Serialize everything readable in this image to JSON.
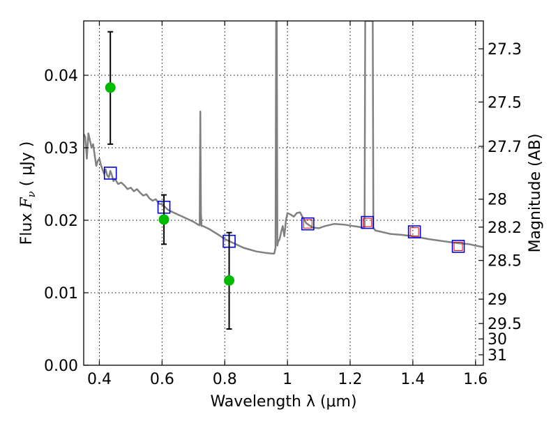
{
  "chart_data": {
    "type": "scatter",
    "title": "",
    "xlabel": "Wavelength  λ (μm)",
    "ylabel": {
      "prefix": "Flux  ",
      "symbol": "F",
      "subscript": "ν",
      "suffix": "  ( μJy )"
    },
    "y2label": "Magnitude (AB)",
    "xlim": [
      0.35,
      1.625
    ],
    "ylim": [
      0.0,
      0.0475
    ],
    "xticks": [
      0.4,
      0.6,
      0.8,
      1.0,
      1.2,
      1.4,
      1.6
    ],
    "xtick_labels": [
      "0.4",
      "0.6",
      "0.8",
      "1",
      "1.2",
      "1.4",
      "1.6"
    ],
    "yticks": [
      0.0,
      0.01,
      0.02,
      0.03,
      0.04
    ],
    "ytick_labels": [
      "0.00",
      "0.01",
      "0.02",
      "0.03",
      "0.04"
    ],
    "y2ticks": [
      27.3,
      27.5,
      27.7,
      28,
      28.2,
      28.5,
      29,
      29.5,
      30,
      31
    ],
    "y2tick_labels": [
      "27.3",
      "27.5",
      "27.7",
      "28",
      "28.2",
      "28.5",
      "29",
      "29.5",
      "30",
      "31"
    ],
    "grid": true,
    "legend": "none",
    "colors": {
      "sed": "#808080",
      "observed": "#00bb00",
      "model": "#0000dd",
      "model_inner": "#dd0000"
    },
    "series": [
      {
        "kind": "line",
        "x": [
          0.35,
          0.355,
          0.36,
          0.365,
          0.37,
          0.375,
          0.38,
          0.385,
          0.39,
          0.395,
          0.4,
          0.405,
          0.41,
          0.415,
          0.42,
          0.425,
          0.43,
          0.435,
          0.44,
          0.445,
          0.45,
          0.46,
          0.47,
          0.48,
          0.49,
          0.5,
          0.51,
          0.52,
          0.53,
          0.54,
          0.55,
          0.56,
          0.57,
          0.58,
          0.59,
          0.6,
          0.62,
          0.64,
          0.66,
          0.68,
          0.7,
          0.715,
          0.72,
          0.722,
          0.724,
          0.726,
          0.728,
          0.73,
          0.75,
          0.78,
          0.8,
          0.83,
          0.86,
          0.9,
          0.93,
          0.95,
          0.958,
          0.962,
          0.964,
          0.966,
          0.968,
          0.97,
          0.975,
          0.98,
          0.985,
          0.99,
          0.993,
          0.995,
          1.0,
          1.01,
          1.02,
          1.03,
          1.04,
          1.05,
          1.06,
          1.08,
          1.1,
          1.12,
          1.15,
          1.18,
          1.21,
          1.24,
          1.246,
          1.248,
          1.25,
          1.26,
          1.27,
          1.272,
          1.274,
          1.28,
          1.3,
          1.33,
          1.36,
          1.4,
          1.45,
          1.5,
          1.55,
          1.58,
          1.6,
          1.625
        ],
        "y": [
          0.0319,
          0.0315,
          0.0285,
          0.032,
          0.031,
          0.03,
          0.0305,
          0.029,
          0.0275,
          0.0282,
          0.0285,
          0.0276,
          0.027,
          0.0264,
          0.027,
          0.0262,
          0.0259,
          0.0268,
          0.0262,
          0.0254,
          0.0257,
          0.025,
          0.0252,
          0.0248,
          0.0243,
          0.0245,
          0.024,
          0.0243,
          0.0238,
          0.0234,
          0.0236,
          0.023,
          0.0227,
          0.0229,
          0.0223,
          0.0222,
          0.0214,
          0.021,
          0.0206,
          0.0202,
          0.0198,
          0.0194,
          0.0193,
          0.035,
          0.021,
          0.0192,
          0.0192,
          0.0192,
          0.0188,
          0.018,
          0.0174,
          0.0168,
          0.0162,
          0.0157,
          0.0155,
          0.0154,
          0.0154,
          0.0162,
          0.0475,
          0.0475,
          0.0165,
          0.017,
          0.0174,
          0.0184,
          0.0192,
          0.0178,
          0.019,
          0.02,
          0.021,
          0.0208,
          0.0205,
          0.021,
          0.0211,
          0.0203,
          0.0196,
          0.019,
          0.0189,
          0.0192,
          0.0195,
          0.0194,
          0.0192,
          0.019,
          0.0191,
          0.0475,
          0.0475,
          0.0475,
          0.0475,
          0.0475,
          0.019,
          0.0186,
          0.0184,
          0.0181,
          0.018,
          0.0178,
          0.0174,
          0.0171,
          0.0168,
          0.0167,
          0.0165,
          0.0163
        ]
      },
      {
        "kind": "errorbar",
        "x": [
          0.435,
          0.606,
          0.814
        ],
        "y": [
          0.0383,
          0.0201,
          0.0117
        ],
        "yerr_low": [
          0.0078,
          0.0034,
          0.0067
        ],
        "yerr_high": [
          0.0077,
          0.0034,
          0.0066
        ]
      },
      {
        "kind": "square",
        "x": [
          0.435,
          0.606,
          0.814,
          1.065,
          1.255,
          1.405,
          1.545
        ],
        "y": [
          0.0265,
          0.0218,
          0.0171,
          0.0195,
          0.0197,
          0.0184,
          0.0164
        ]
      },
      {
        "kind": "inner-square",
        "x": [
          1.065,
          1.255,
          1.405,
          1.545
        ],
        "y": [
          0.0195,
          0.0197,
          0.0184,
          0.0164
        ]
      }
    ]
  }
}
